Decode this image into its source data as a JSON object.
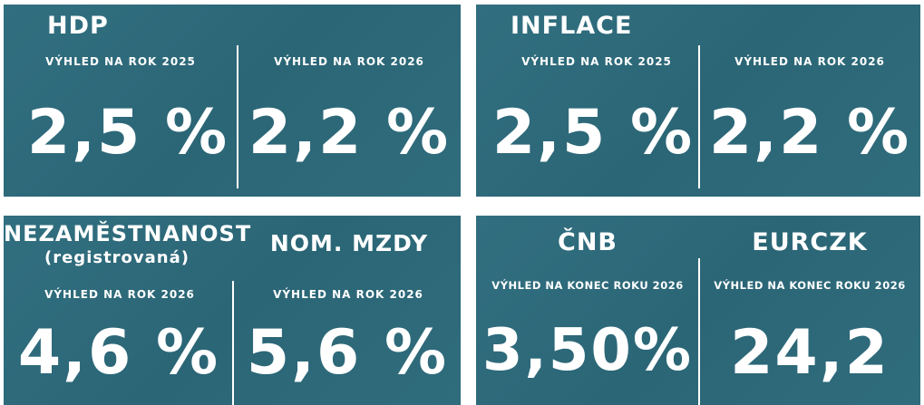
{
  "panels": [
    {
      "title": "HDP",
      "columns": [
        {
          "label": "VÝHLED NA ROK 2025",
          "value": "2,5 %"
        },
        {
          "label": "VÝHLED NA ROK 2026",
          "value": "2,2 %"
        }
      ]
    },
    {
      "title": "INFLACE",
      "columns": [
        {
          "label": "VÝHLED NA ROK 2025",
          "value": "2,5 %"
        },
        {
          "label": "VÝHLED NA ROK 2026",
          "value": "2,2 %"
        }
      ]
    },
    {
      "columns": [
        {
          "title": "NEZAMĚSTNANOST",
          "subtitle": "(registrovaná)",
          "label": "VÝHLED NA ROK 2026",
          "value": "4,6 %"
        },
        {
          "title": "NOM. MZDY",
          "label": "VÝHLED NA ROK 2026",
          "value": "5,6 %"
        }
      ]
    },
    {
      "columns": [
        {
          "title": "ČNB",
          "label": "VÝHLED NA KONEC ROKU 2026",
          "value": "3,50%"
        },
        {
          "title": "EURCZK",
          "label": "VÝHLED NA KONEC ROKU 2026",
          "value": "24,2"
        }
      ]
    }
  ]
}
